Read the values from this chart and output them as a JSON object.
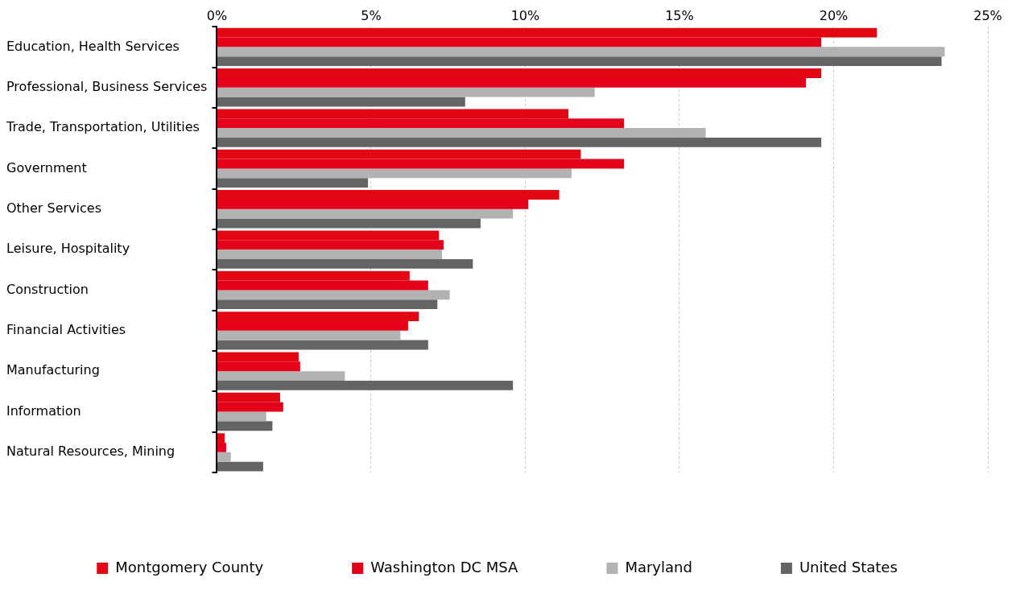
{
  "chart_data": {
    "type": "bar",
    "orientation": "horizontal",
    "categories": [
      "Education, Health Services",
      "Professional, Business Services",
      "Trade, Transportation, Utilities",
      "Government",
      "Other Services",
      "Leisure, Hospitality",
      "Construction",
      "Financial Activities",
      "Manufacturing",
      "Information",
      "Natural Resources, Mining"
    ],
    "series": [
      {
        "name": "Montgomery County",
        "color": "#e30613",
        "values": [
          21.4,
          19.6,
          11.4,
          11.8,
          11.1,
          7.2,
          6.25,
          6.55,
          2.65,
          2.05,
          0.25
        ]
      },
      {
        "name": "Washington DC MSA",
        "color": "#e2001a",
        "values": [
          19.6,
          19.1,
          13.2,
          13.2,
          10.1,
          7.35,
          6.85,
          6.2,
          2.7,
          2.15,
          0.3
        ]
      },
      {
        "name": "Maryland",
        "color": "#b2b2b2",
        "values": [
          23.6,
          12.25,
          15.85,
          11.5,
          9.6,
          7.3,
          7.55,
          5.95,
          4.15,
          1.6,
          0.45
        ]
      },
      {
        "name": "United States",
        "color": "#636466",
        "values": [
          23.5,
          8.05,
          19.6,
          4.9,
          8.55,
          8.3,
          7.15,
          6.85,
          9.6,
          1.8,
          1.5
        ]
      }
    ],
    "xlim": [
      0,
      25
    ],
    "xticks": [
      {
        "value": 0,
        "label": "0%"
      },
      {
        "value": 5,
        "label": "5%"
      },
      {
        "value": 10,
        "label": "10%"
      },
      {
        "value": 15,
        "label": "15%"
      },
      {
        "value": 20,
        "label": "20%"
      },
      {
        "value": 25,
        "label": "25%"
      }
    ],
    "grid": "x",
    "legend": "bottom"
  }
}
